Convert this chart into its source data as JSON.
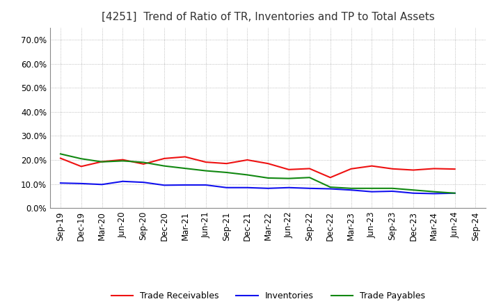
{
  "title": "[4251]  Trend of Ratio of TR, Inventories and TP to Total Assets",
  "background_color": "#ffffff",
  "plot_background_color": "#ffffff",
  "grid_color": "#aaaaaa",
  "ylim": [
    0.0,
    0.75
  ],
  "yticks": [
    0.0,
    0.1,
    0.2,
    0.3,
    0.4,
    0.5,
    0.6,
    0.7
  ],
  "x_labels": [
    "Sep-19",
    "Dec-19",
    "Mar-20",
    "Jun-20",
    "Sep-20",
    "Dec-20",
    "Mar-21",
    "Jun-21",
    "Sep-21",
    "Dec-21",
    "Mar-22",
    "Jun-22",
    "Sep-22",
    "Dec-22",
    "Mar-23",
    "Jun-23",
    "Sep-23",
    "Dec-23",
    "Mar-24",
    "Jun-24",
    "Sep-24"
  ],
  "trade_receivables": [
    0.207,
    0.173,
    0.193,
    0.201,
    0.183,
    0.206,
    0.213,
    0.191,
    0.185,
    0.2,
    0.185,
    0.16,
    0.164,
    0.127,
    0.163,
    0.175,
    0.163,
    0.158,
    0.164,
    0.162,
    null
  ],
  "inventories": [
    0.104,
    0.102,
    0.098,
    0.111,
    0.107,
    0.095,
    0.096,
    0.096,
    0.085,
    0.085,
    0.082,
    0.085,
    0.082,
    0.08,
    0.075,
    0.068,
    0.07,
    0.062,
    0.06,
    0.062,
    null
  ],
  "trade_payables": [
    0.225,
    0.205,
    0.192,
    0.196,
    0.19,
    0.175,
    0.165,
    0.155,
    0.148,
    0.138,
    0.125,
    0.123,
    0.127,
    0.087,
    0.082,
    0.082,
    0.082,
    0.075,
    0.068,
    0.062,
    null
  ],
  "tr_color": "#ee1111",
  "inv_color": "#1111ee",
  "tp_color": "#118811",
  "line_width": 1.5,
  "legend_labels": [
    "Trade Receivables",
    "Inventories",
    "Trade Payables"
  ],
  "title_fontsize": 11,
  "title_color": "#333333",
  "tick_fontsize": 8.5,
  "legend_fontsize": 9
}
